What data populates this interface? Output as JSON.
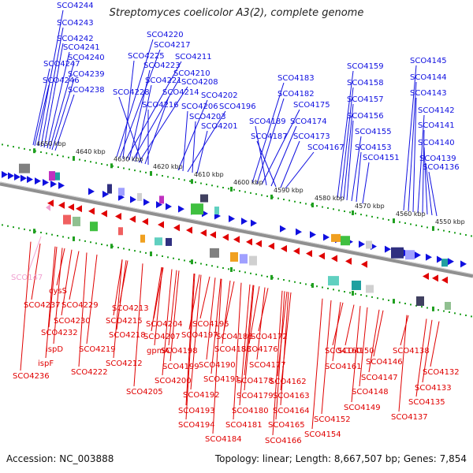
{
  "title": "Streptomyces coelicolor A3(2), complete genome",
  "footer": {
    "accession": "Accession: NC_003888",
    "summary": "Topology: linear; Length: 8,667,507 bp; Genes: 7,854"
  },
  "colors": {
    "forward": "#1010e0",
    "reverse": "#e00000",
    "pseudo": "#f0a0d0",
    "backbone": "#909090",
    "ticks": "#20a020"
  },
  "scale_labels": [
    "4650 kbp",
    "4640 kbp",
    "4630 kbp",
    "4620 kbp",
    "4610 kbp",
    "4600 kbp",
    "4590 kbp",
    "4580 kbp",
    "4570 kbp",
    "4560 kbp",
    "4550 kbp"
  ],
  "forward_labels": [
    "SCO4244",
    "SCO4243",
    "SCO4242",
    "SCO4241",
    "SCO4240",
    "SCO4247",
    "SCO4239",
    "SCO4246",
    "SCO4238",
    "SCO4220",
    "SCO4217",
    "SCO4225",
    "SCO4211",
    "SCO4223",
    "SCO4210",
    "SCO4221",
    "SCO4208",
    "SCO4228",
    "SCO4214",
    "SCO4216",
    "SCO4202",
    "SCO4206",
    "SCO4196",
    "SCO4203",
    "SCO4201",
    "SCO4183",
    "SCO4182",
    "SCO4175",
    "SCO4189",
    "SCO4174",
    "SCO4187",
    "SCO4173",
    "SCO4167",
    "SCO4159",
    "SCO4158",
    "SCO4157",
    "SCO4156",
    "SCO4155",
    "SCO4153",
    "SCO4151",
    "SCO4145",
    "SCO4144",
    "SCO4143",
    "SCO4142",
    "SCO4141",
    "SCO4140",
    "SCO4139",
    "SCO4136"
  ],
  "pseudo_labels": [
    "SCO147"
  ],
  "reverse_labels": [
    "cysS",
    "SCO4237",
    "SCO4229",
    "SCO4230",
    "SCO4232",
    "ispD",
    "ispF",
    "SCO4236",
    "SCO4213",
    "SCO4215",
    "SCO4218",
    "SCO4219",
    "SCO4222",
    "SCO4212",
    "SCO4204",
    "SCO4207",
    "gpmA",
    "SCO4205",
    "SCO4195",
    "SCO4197",
    "SCO4198",
    "SCO4199",
    "SCO4200",
    "SCO4186",
    "SCO4188",
    "SCO4190",
    "SCO4191",
    "SCO4192",
    "SCO4193",
    "SCO4194",
    "SCO4172",
    "SCO4176",
    "SCO4177",
    "SCO4178",
    "SCO4179",
    "SCO4180",
    "SCO4181",
    "SCO4184",
    "SCO4162",
    "SCO4163",
    "SCO4164",
    "SCO4165",
    "SCO4166",
    "SCO4160",
    "SCO4161",
    "SCO4150",
    "SCO4146",
    "SCO4147",
    "SCO4148",
    "SCO4149",
    "SCO4152",
    "SCO4154",
    "SCO4138",
    "SCO4132",
    "SCO4133",
    "SCO4135",
    "SCO4137"
  ]
}
